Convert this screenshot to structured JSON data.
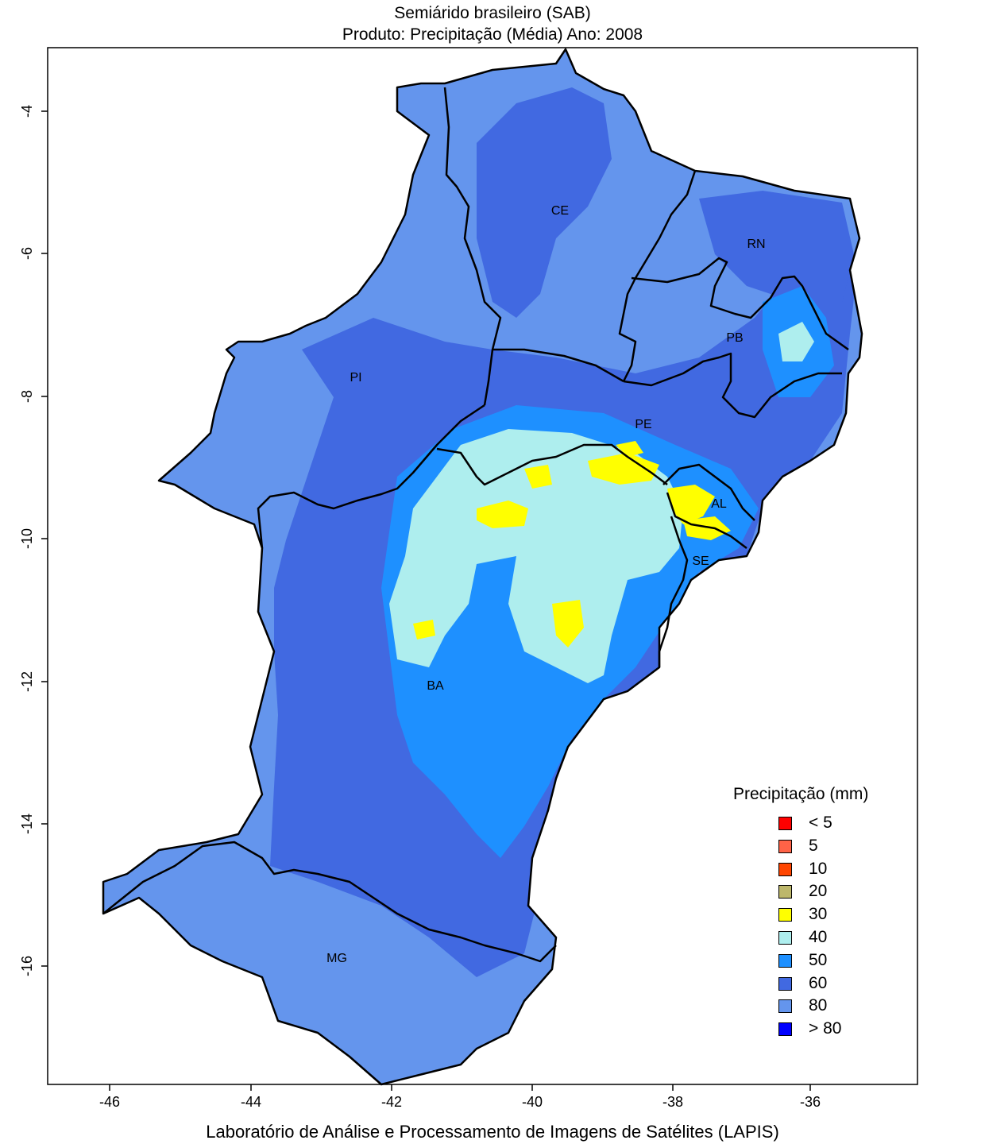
{
  "header": {
    "title_line1": "Semiárido brasileiro (SAB)",
    "title_line2": "Produto: Precipitação (Média)     Ano:  2008"
  },
  "footer": "Laboratório de Análise e Processamento de Imagens de Satélites (LAPIS)",
  "axes": {
    "x_ticks": [
      "-46",
      "-44",
      "-42",
      "-40",
      "-38",
      "-36"
    ],
    "y_ticks": [
      "-4",
      "-6",
      "-8",
      "-10",
      "-12",
      "-14",
      "-16"
    ]
  },
  "states": [
    "CE",
    "RN",
    "PB",
    "PI",
    "PE",
    "AL",
    "SE",
    "BA",
    "MG"
  ],
  "legend": {
    "title": "Precipitação (mm)",
    "items": [
      {
        "label": "< 5",
        "color": "#ff0000"
      },
      {
        "label": "5",
        "color": "#ff6347"
      },
      {
        "label": "10",
        "color": "#ff4500"
      },
      {
        "label": "20",
        "color": "#bdb76b"
      },
      {
        "label": "30",
        "color": "#ffff00"
      },
      {
        "label": "40",
        "color": "#aeeeee"
      },
      {
        "label": "50",
        "color": "#1e90ff"
      },
      {
        "label": "60",
        "color": "#4169e1"
      },
      {
        "label": "80",
        "color": "#6495ed"
      },
      {
        "label": "> 80",
        "color": "#0000ff"
      }
    ]
  },
  "colors": {
    "class80": "#6495ed",
    "class60": "#4169e1",
    "class50": "#1e90ff",
    "class40": "#aeeeee",
    "class30": "#ffff00"
  }
}
